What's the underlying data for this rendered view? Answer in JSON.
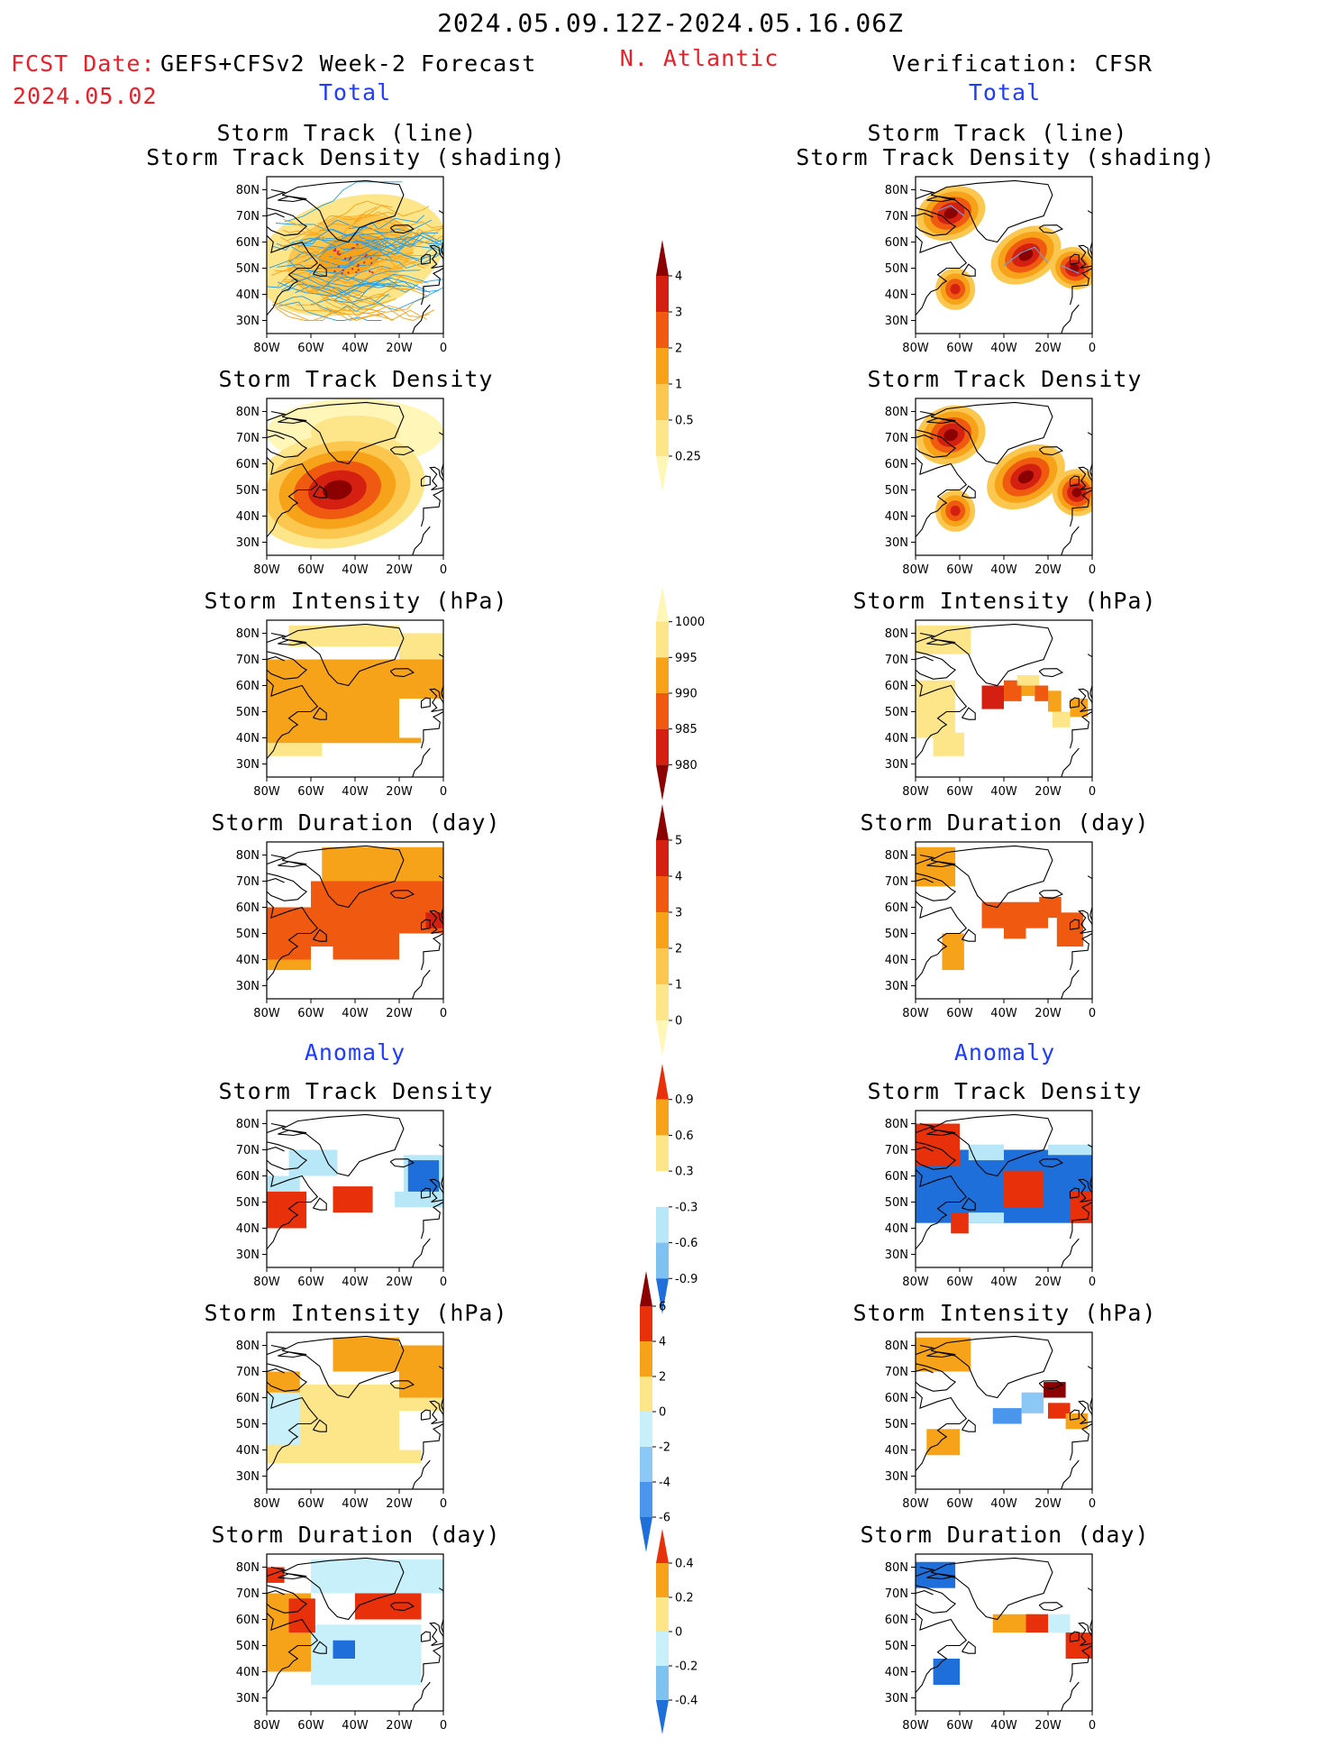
{
  "header": {
    "date_range": "2024.05.09.12Z-2024.05.16.06Z",
    "fcst_date_label": "FCST Date:",
    "model": "GEFS+CFSv2 Week-2 Forecast",
    "region": "N. Atlantic",
    "verification": "Verification: CFSR",
    "init_date": "2024.05.02"
  },
  "sections": {
    "left_total": "Total",
    "right_total": "Total",
    "left_anomaly": "Anomaly",
    "right_anomaly": "Anomaly"
  },
  "panel_titles": {
    "track_line": "Storm Track (line)",
    "track_density_shading": "Storm Track Density (shading)",
    "track_density": "Storm Track Density",
    "intensity": "Storm Intensity (hPa)",
    "duration": "Storm Duration (day)"
  },
  "axes": {
    "lat_ticks": [
      "80N",
      "70N",
      "60N",
      "50N",
      "40N",
      "30N"
    ],
    "lon_ticks": [
      "80W",
      "60W",
      "40W",
      "20W",
      "0"
    ]
  },
  "colorbars": {
    "track_density_total": {
      "labels": [
        "4",
        "3",
        "2",
        "1",
        "0.5",
        "0.25"
      ],
      "colors": [
        "#8b0000",
        "#d42010",
        "#f05a10",
        "#f7a31a",
        "#fcc74f",
        "#fde58a",
        "#fff6b8"
      ]
    },
    "intensity_total": {
      "labels": [
        "1000",
        "995",
        "990",
        "985",
        "980"
      ],
      "colors": [
        "#fff6b8",
        "#fde58a",
        "#f7a31a",
        "#f05a10",
        "#d42010",
        "#8b0000"
      ]
    },
    "duration_total": {
      "labels": [
        "5",
        "4",
        "3",
        "2",
        "1",
        "0"
      ],
      "colors": [
        "#8b0000",
        "#d42010",
        "#f05a10",
        "#f7a31a",
        "#fcc74f",
        "#fde58a",
        "#fff6b8"
      ]
    },
    "track_density_anom": {
      "labels": [
        "0.9",
        "0.6",
        "0.3",
        "-0.3",
        "-0.6",
        "-0.9"
      ],
      "colors": [
        "#e8300a",
        "#f7a31a",
        "#fde58a",
        "#ffffff",
        "#b8e8f7",
        "#7ec2f2",
        "#1e6fd9"
      ]
    },
    "intensity_anom": {
      "labels": [
        "6",
        "4",
        "2",
        "0",
        "-2",
        "-4",
        "-6"
      ],
      "colors": [
        "#8b0000",
        "#e8300a",
        "#f7a31a",
        "#fde58a",
        "#c8f0fa",
        "#8cc8f5",
        "#4a96ec",
        "#1e6fd9"
      ]
    },
    "duration_anom": {
      "labels": [
        "0.4",
        "0.2",
        "0",
        "-0.2",
        "-0.4"
      ],
      "colors": [
        "#e8300a",
        "#f7a31a",
        "#fde58a",
        "#c8f0fa",
        "#7ec2f2",
        "#1e6fd9"
      ]
    }
  },
  "palette": {
    "map_bg": "#ffffff",
    "coast": "#000000",
    "track_blue": "#1ea0f0",
    "track_orange": "#f7a31a"
  }
}
